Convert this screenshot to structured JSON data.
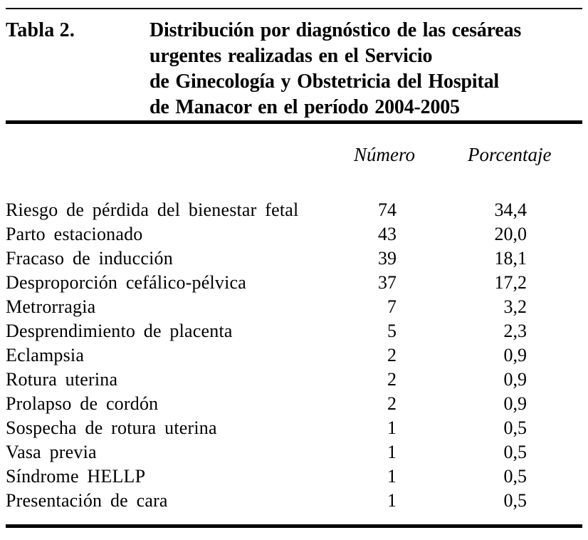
{
  "document": {
    "label": "Tabla 2.",
    "title_lines": [
      "Distribución por diagnóstico de las cesáreas",
      "urgentes realizadas en el Servicio",
      "de Ginecología y Obstetricia del Hospital",
      "de Manacor en el período 2004-2005"
    ],
    "columns": {
      "numero": "Número",
      "porcentaje": "Porcentaje"
    },
    "rows": [
      {
        "diagnosis": "Riesgo de pérdida del bienestar fetal",
        "numero": "74",
        "porcentaje": "34,4"
      },
      {
        "diagnosis": "Parto estacionado",
        "numero": "43",
        "porcentaje": "20,0"
      },
      {
        "diagnosis": "Fracaso de inducción",
        "numero": "39",
        "porcentaje": "18,1"
      },
      {
        "diagnosis": "Desproporción cefálico-pélvica",
        "numero": "37",
        "porcentaje": "17,2"
      },
      {
        "diagnosis": "Metrorragia",
        "numero": "7",
        "porcentaje": "3,2"
      },
      {
        "diagnosis": "Desprendimiento de placenta",
        "numero": "5",
        "porcentaje": "2,3"
      },
      {
        "diagnosis": "Eclampsia",
        "numero": "2",
        "porcentaje": "0,9"
      },
      {
        "diagnosis": "Rotura uterina",
        "numero": "2",
        "porcentaje": "0,9"
      },
      {
        "diagnosis": "Prolapso de cordón",
        "numero": "2",
        "porcentaje": "0,9"
      },
      {
        "diagnosis": "Sospecha de rotura uterina",
        "numero": "1",
        "porcentaje": "0,5"
      },
      {
        "diagnosis": "Vasa previa",
        "numero": "1",
        "porcentaje": "0,5"
      },
      {
        "diagnosis": "Síndrome HELLP",
        "numero": "1",
        "porcentaje": "0,5"
      },
      {
        "diagnosis": "Presentación de cara",
        "numero": "1",
        "porcentaje": "0,5"
      }
    ]
  },
  "colors": {
    "text": "#000000",
    "background": "#ffffff",
    "rule": "#000000"
  }
}
